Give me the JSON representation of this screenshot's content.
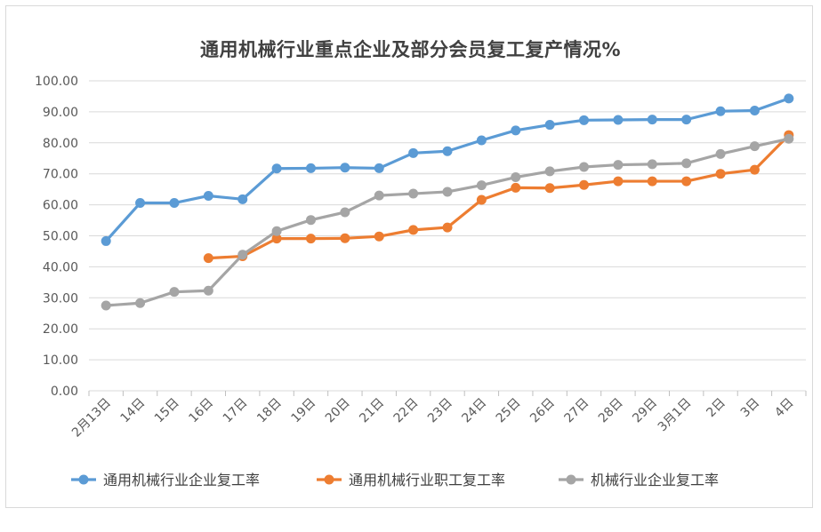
{
  "chart_data": {
    "type": "line",
    "title": "通用机械行业重点企业及部分会员复工复产情况%",
    "categories": [
      "2月13日",
      "14日",
      "15日",
      "16日",
      "17日",
      "18日",
      "19日",
      "20日",
      "21日",
      "22日",
      "23日",
      "24日",
      "25日",
      "26日",
      "27日",
      "28日",
      "29日",
      "3月1日",
      "2日",
      "3日",
      "4日"
    ],
    "ylim": [
      0,
      100
    ],
    "yticks": [
      "0.00",
      "10.00",
      "20.00",
      "30.00",
      "40.00",
      "50.00",
      "60.00",
      "70.00",
      "80.00",
      "90.00",
      "100.00"
    ],
    "grid": true,
    "legend_position": "bottom",
    "series": [
      {
        "name": "通用机械行业企业复工率",
        "color": "#5b9bd5",
        "values": [
          48.3,
          60.6,
          60.6,
          62.9,
          61.8,
          71.7,
          71.8,
          72.0,
          71.8,
          76.7,
          77.3,
          80.8,
          84.0,
          85.8,
          87.3,
          87.4,
          87.5,
          87.5,
          90.2,
          90.4,
          94.3
        ]
      },
      {
        "name": "通用机械行业职工复工率",
        "color": "#ed7d31",
        "values": [
          null,
          null,
          null,
          42.8,
          43.4,
          49.1,
          49.1,
          49.2,
          49.8,
          51.9,
          52.7,
          61.6,
          65.5,
          65.4,
          66.4,
          67.6,
          67.6,
          67.6,
          70.0,
          71.3,
          82.5
        ]
      },
      {
        "name": "机械行业企业复工率",
        "color": "#a5a5a5",
        "values": [
          27.5,
          28.3,
          31.9,
          32.3,
          43.9,
          51.5,
          55.1,
          57.6,
          63.0,
          63.6,
          64.2,
          66.3,
          68.9,
          70.8,
          72.2,
          72.9,
          73.1,
          73.4,
          76.4,
          78.9,
          81.3
        ]
      }
    ]
  }
}
